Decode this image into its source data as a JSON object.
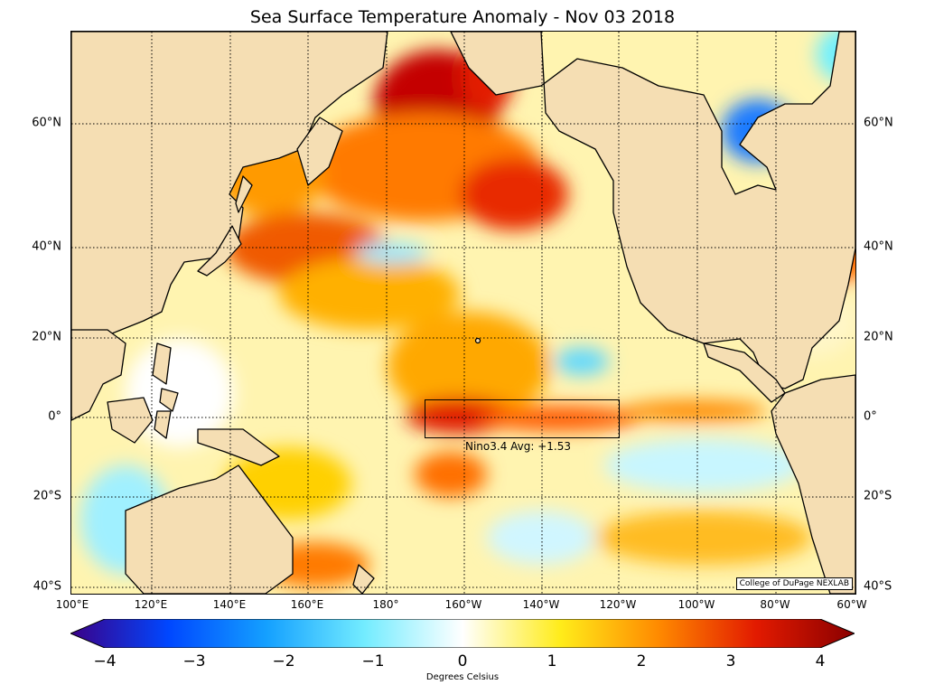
{
  "title": "Sea Surface Temperature Anomaly - Nov 03 2018",
  "lat_labels": [
    "60°N",
    "40°N",
    "20°N",
    "0°",
    "20°S",
    "40°S"
  ],
  "lon_labels": [
    "100°E",
    "120°E",
    "140°E",
    "160°E",
    "180°",
    "160°W",
    "140°W",
    "120°W",
    "100°W",
    "80°W",
    "60°W"
  ],
  "nino": {
    "label": "Nino3.4 Avg: +1.53"
  },
  "credit": "College of DuPage NEXLAB",
  "colorbar": {
    "ticks": [
      "−4",
      "−3",
      "−2",
      "−1",
      "0",
      "1",
      "2",
      "3",
      "4"
    ],
    "label": "Degrees Celsius",
    "colors": [
      "#3b0087",
      "#0047ff",
      "#14a0ff",
      "#73ecff",
      "#ffffff",
      "#ffec1a",
      "#ff8a00",
      "#e21a00",
      "#8a0000"
    ]
  },
  "colors": {
    "land": "#f5deb3",
    "coast": "#000000",
    "grid": "#000000"
  }
}
